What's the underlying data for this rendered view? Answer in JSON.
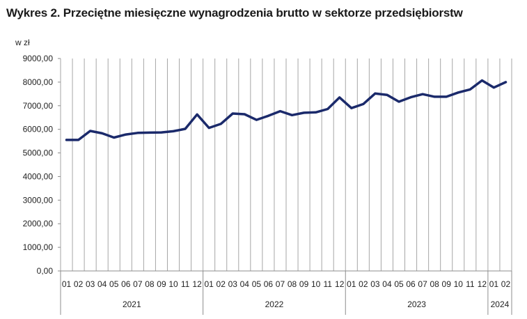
{
  "chart_data": {
    "type": "line",
    "title": "Wykres 2. Przeciętne miesięczne wynagrodzenia brutto w sektorze przedsiębiorstw",
    "ylabel": "w zł",
    "xlabel": "",
    "ylim": [
      0,
      9000
    ],
    "yticks": [
      "0,00",
      "1000,00",
      "2000,00",
      "3000,00",
      "4000,00",
      "5000,00",
      "6000,00",
      "7000,00",
      "8000,00",
      "9000,00"
    ],
    "grid": "vertical",
    "legend": "none",
    "line_color": "#1b2a6b",
    "years": [
      {
        "label": "2021",
        "months": 12
      },
      {
        "label": "2022",
        "months": 12
      },
      {
        "label": "2023",
        "months": 12
      },
      {
        "label": "2024",
        "months": 2
      }
    ],
    "categories": [
      "01",
      "02",
      "03",
      "04",
      "05",
      "06",
      "07",
      "08",
      "09",
      "10",
      "11",
      "12",
      "01",
      "02",
      "03",
      "04",
      "05",
      "06",
      "07",
      "08",
      "09",
      "10",
      "11",
      "12",
      "01",
      "02",
      "03",
      "04",
      "05",
      "06",
      "07",
      "08",
      "09",
      "10",
      "11",
      "12",
      "01",
      "02"
    ],
    "values": [
      5550,
      5550,
      5930,
      5830,
      5650,
      5780,
      5850,
      5860,
      5870,
      5920,
      6020,
      6630,
      6060,
      6230,
      6670,
      6640,
      6400,
      6570,
      6770,
      6600,
      6700,
      6720,
      6860,
      7350,
      6900,
      7070,
      7520,
      7460,
      7170,
      7360,
      7490,
      7380,
      7380,
      7560,
      7690,
      8070,
      7770,
      8000
    ]
  }
}
